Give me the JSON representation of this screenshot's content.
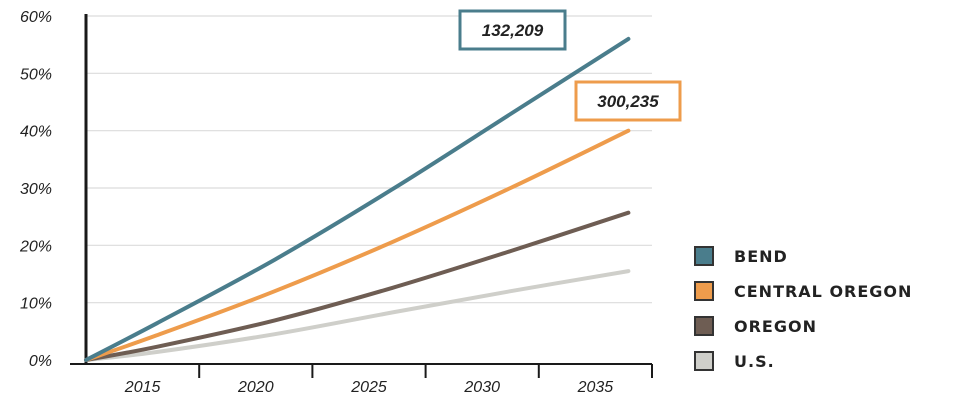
{
  "chart_data": {
    "type": "line",
    "title": "",
    "xlabel": "",
    "ylabel": "",
    "x_ticks": [
      "2015",
      "2020",
      "2025",
      "2030",
      "2035"
    ],
    "y_ticks": [
      "0%",
      "10%",
      "20%",
      "30%",
      "40%",
      "50%",
      "60%"
    ],
    "xlim": [
      2012,
      2036
    ],
    "ylim": [
      0,
      60
    ],
    "grid": "horizontal",
    "legend_position": "right",
    "series": [
      {
        "name": "BEND",
        "color": "#4a7d8c",
        "x": [
          2012,
          2015,
          2020,
          2025,
          2030,
          2035
        ],
        "y": [
          0,
          6.4,
          17.5,
          29.8,
          42.9,
          56
        ]
      },
      {
        "name": "CENTRAL OREGON",
        "color": "#ee9c4c",
        "x": [
          2012,
          2015,
          2020,
          2025,
          2030,
          2035
        ],
        "y": [
          0,
          4.3,
          12.0,
          20.6,
          30.0,
          40
        ]
      },
      {
        "name": "OREGON",
        "color": "#6e5d53",
        "x": [
          2012,
          2015,
          2020,
          2025,
          2030,
          2035
        ],
        "y": [
          0,
          2.3,
          6.9,
          12.6,
          19.0,
          25.7
        ]
      },
      {
        "name": "U.S.",
        "color": "#cfcfca",
        "x": [
          2012,
          2015,
          2020,
          2025,
          2030,
          2035
        ],
        "y": [
          0,
          1.4,
          4.5,
          8.3,
          12.0,
          15.5
        ]
      }
    ],
    "annotations": [
      {
        "text": "132,209",
        "series": "BEND",
        "border_color": "#4a7d8c"
      },
      {
        "text": "300,235",
        "series": "CENTRAL OREGON",
        "border_color": "#ee9c4c"
      }
    ]
  }
}
